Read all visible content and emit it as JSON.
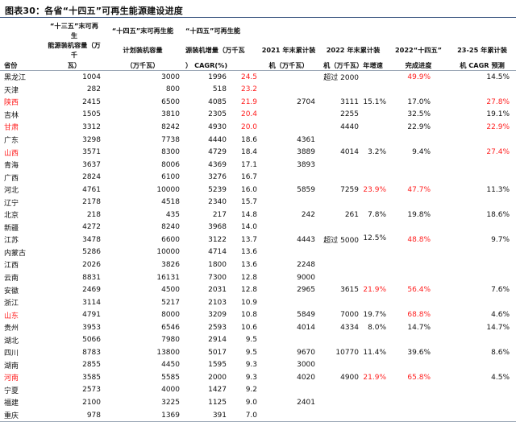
{
  "title": "图表30：各省“十四五”可再生能源建设进度",
  "headers": [
    [
      "“十三五”末可再生",
      "“十四五”末可再生能",
      "“十四五”可再生能",
      "",
      "",
      "",
      "",
      ""
    ],
    [
      "能源装机容量（万千",
      "计划装机容量",
      "源装机增量（万千瓦",
      "2021 年末累计装",
      "2022 年末累计装",
      "2022“十四五”",
      "23-25 年累计装",
      ""
    ],
    [
      "省份",
      "瓦）",
      "（万千瓦）",
      "） CAGR(%)",
      "机（万千瓦）",
      "机（万千瓦）年增速",
      "完成进度",
      "机 CAGR 预测"
    ]
  ],
  "header_cols": {
    "c1": [
      "“十三五”末可再生",
      "能源装机容量（万千",
      "瓦）"
    ],
    "c2": [
      "“十四五”末可再生能",
      "计划装机容量",
      "（万千瓦）"
    ],
    "c3": [
      "“十四五”可再生能",
      "源装机增量（万千瓦",
      "）"
    ],
    "c4": [
      "CAGR(%)"
    ],
    "c5": [
      "2021 年末累计装",
      "机（万千瓦）"
    ],
    "c6": [
      "2022 年末累计装",
      "机（万千瓦）",
      "年增速"
    ],
    "c7": [
      "2022“十四五”",
      "完成进度"
    ],
    "c8": [
      "23-25 年累计装",
      "机 CAGR 预测"
    ]
  },
  "colors": {
    "accent_red": "#ff1f1f",
    "rule": "#1a3a6b"
  },
  "rows": [
    {
      "province": "黑龙江",
      "end13": "1004",
      "plan14": "3000",
      "inc14": "1996",
      "cagr": "24.5",
      "cagr_red": true,
      "cum2021": "",
      "cum2022": "超过 2000",
      "growth": "",
      "progress": "49.9%",
      "progress_red": true,
      "cagr_pred": "14.5%",
      "pred_red": false,
      "prov_red": false
    },
    {
      "province": "天津",
      "end13": "282",
      "plan14": "800",
      "inc14": "518",
      "cagr": "23.2",
      "cagr_red": true,
      "cum2021": "",
      "cum2022": "",
      "growth": "",
      "progress": "",
      "progress_red": false,
      "cagr_pred": "",
      "pred_red": false,
      "prov_red": false
    },
    {
      "province": "陕西",
      "end13": "2415",
      "plan14": "6500",
      "inc14": "4085",
      "cagr": "21.9",
      "cagr_red": true,
      "cum2021": "2704",
      "cum2022": "3111",
      "growth": "15.1%",
      "progress": "17.0%",
      "progress_red": false,
      "cagr_pred": "27.8%",
      "pred_red": true,
      "prov_red": true
    },
    {
      "province": "吉林",
      "end13": "1505",
      "plan14": "3810",
      "inc14": "2305",
      "cagr": "20.4",
      "cagr_red": true,
      "cum2021": "",
      "cum2022": "2255",
      "growth": "",
      "progress": "32.5%",
      "progress_red": false,
      "cagr_pred": "19.1%",
      "pred_red": false,
      "prov_red": false
    },
    {
      "province": "甘肃",
      "end13": "3312",
      "plan14": "8242",
      "inc14": "4930",
      "cagr": "20.0",
      "cagr_red": true,
      "cum2021": "",
      "cum2022": "4440",
      "growth": "",
      "progress": "22.9%",
      "progress_red": false,
      "cagr_pred": "22.9%",
      "pred_red": true,
      "prov_red": true
    },
    {
      "province": "广东",
      "end13": "3298",
      "plan14": "7738",
      "inc14": "4440",
      "cagr": "18.6",
      "cagr_red": false,
      "cum2021": "4361",
      "cum2022": "",
      "growth": "",
      "progress": "",
      "progress_red": false,
      "cagr_pred": "",
      "pred_red": false,
      "prov_red": false
    },
    {
      "province": "山西",
      "end13": "3571",
      "plan14": "8300",
      "inc14": "4729",
      "cagr": "18.4",
      "cagr_red": false,
      "cum2021": "3889",
      "cum2022": "4014",
      "growth": "3.2%",
      "progress": "9.4%",
      "progress_red": false,
      "cagr_pred": "27.4%",
      "pred_red": true,
      "prov_red": true
    },
    {
      "province": "青海",
      "end13": "3637",
      "plan14": "8006",
      "inc14": "4369",
      "cagr": "17.1",
      "cagr_red": false,
      "cum2021": "3893",
      "cum2022": "",
      "growth": "",
      "progress": "",
      "progress_red": false,
      "cagr_pred": "",
      "pred_red": false,
      "prov_red": false
    },
    {
      "province": "广西",
      "end13": "2824",
      "plan14": "6100",
      "inc14": "3276",
      "cagr": "16.7",
      "cagr_red": false,
      "cum2021": "",
      "cum2022": "",
      "growth": "",
      "progress": "",
      "progress_red": false,
      "cagr_pred": "",
      "pred_red": false,
      "prov_red": false
    },
    {
      "province": "河北",
      "end13": "4761",
      "plan14": "10000",
      "inc14": "5239",
      "cagr": "16.0",
      "cagr_red": false,
      "cum2021": "5859",
      "cum2022": "7259",
      "growth": "23.9%",
      "growth_red": true,
      "progress": "47.7%",
      "progress_red": true,
      "cagr_pred": "11.3%",
      "pred_red": false,
      "prov_red": false
    },
    {
      "province": "辽宁",
      "end13": "2178",
      "plan14": "4518",
      "inc14": "2340",
      "cagr": "15.7",
      "cagr_red": false,
      "cum2021": "",
      "cum2022": "",
      "growth": "",
      "progress": "",
      "progress_red": false,
      "cagr_pred": "",
      "pred_red": false,
      "prov_red": false
    },
    {
      "province": "北京",
      "end13": "218",
      "plan14": "435",
      "inc14": "217",
      "cagr": "14.8",
      "cagr_red": false,
      "cum2021": "242",
      "cum2022": "261",
      "growth": "7.8%",
      "progress": "19.8%",
      "progress_red": false,
      "cagr_pred": "18.6%",
      "pred_red": false,
      "prov_red": false
    },
    {
      "province": "新疆",
      "end13": "4272",
      "plan14": "8240",
      "inc14": "3968",
      "cagr": "14.0",
      "cagr_red": false,
      "cum2021": "",
      "cum2022": "",
      "growth": "",
      "progress": "",
      "progress_red": false,
      "cagr_pred": "",
      "pred_red": false,
      "prov_red": false
    },
    {
      "province": "江苏",
      "end13": "3478",
      "plan14": "6600",
      "inc14": "3122",
      "cagr": "13.7",
      "cagr_red": false,
      "cum2021": "4443",
      "cum2022": "超过 5000",
      "growth": "12.5%",
      "progress": "48.8%",
      "progress_red": true,
      "cagr_pred": "9.7%",
      "pred_red": false,
      "prov_red": false
    },
    {
      "province": "内蒙古",
      "end13": "5286",
      "plan14": "10000",
      "inc14": "4714",
      "cagr": "13.6",
      "cagr_red": false,
      "cum2021": "",
      "cum2022": "",
      "growth": "",
      "progress": "",
      "progress_red": false,
      "cagr_pred": "",
      "pred_red": false,
      "prov_red": false
    },
    {
      "province": "江西",
      "end13": "2026",
      "plan14": "3826",
      "inc14": "1800",
      "cagr": "13.6",
      "cagr_red": false,
      "cum2021": "2248",
      "cum2022": "",
      "growth": "",
      "progress": "",
      "progress_red": false,
      "cagr_pred": "",
      "pred_red": false,
      "prov_red": false
    },
    {
      "province": "云南",
      "end13": "8831",
      "plan14": "16131",
      "inc14": "7300",
      "cagr": "12.8",
      "cagr_red": false,
      "cum2021": "9000",
      "cum2022": "",
      "growth": "",
      "progress": "",
      "progress_red": false,
      "cagr_pred": "",
      "pred_red": false,
      "prov_red": false
    },
    {
      "province": "安徽",
      "end13": "2469",
      "plan14": "4500",
      "inc14": "2031",
      "cagr": "12.8",
      "cagr_red": false,
      "cum2021": "2965",
      "cum2022": "3615",
      "growth": "21.9%",
      "growth_red": true,
      "progress": "56.4%",
      "progress_red": true,
      "cagr_pred": "7.6%",
      "pred_red": false,
      "prov_red": false
    },
    {
      "province": "浙江",
      "end13": "3114",
      "plan14": "5217",
      "inc14": "2103",
      "cagr": "10.9",
      "cagr_red": false,
      "cum2021": "",
      "cum2022": "",
      "growth": "",
      "progress": "",
      "progress_red": false,
      "cagr_pred": "",
      "pred_red": false,
      "prov_red": false
    },
    {
      "province": "山东",
      "end13": "4791",
      "plan14": "8000",
      "inc14": "3209",
      "cagr": "10.8",
      "cagr_red": false,
      "cum2021": "5849",
      "cum2022": "7000",
      "growth": "19.7%",
      "progress": "68.8%",
      "progress_red": true,
      "cagr_pred": "4.6%",
      "pred_red": false,
      "prov_red": true
    },
    {
      "province": "贵州",
      "end13": "3953",
      "plan14": "6546",
      "inc14": "2593",
      "cagr": "10.6",
      "cagr_red": false,
      "cum2021": "4014",
      "cum2022": "4334",
      "growth": "8.0%",
      "progress": "14.7%",
      "progress_red": false,
      "cagr_pred": "14.7%",
      "pred_red": false,
      "prov_red": false
    },
    {
      "province": "湖北",
      "end13": "5066",
      "plan14": "7980",
      "inc14": "2914",
      "cagr": "9.5",
      "cagr_red": false,
      "cum2021": "",
      "cum2022": "",
      "growth": "",
      "progress": "",
      "progress_red": false,
      "cagr_pred": "",
      "pred_red": false,
      "prov_red": false
    },
    {
      "province": "四川",
      "end13": "8783",
      "plan14": "13800",
      "inc14": "5017",
      "cagr": "9.5",
      "cagr_red": false,
      "cum2021": "9670",
      "cum2022": "10770",
      "growth": "11.4%",
      "progress": "39.6%",
      "progress_red": false,
      "cagr_pred": "8.6%",
      "pred_red": false,
      "prov_red": false
    },
    {
      "province": "湖南",
      "end13": "2855",
      "plan14": "4450",
      "inc14": "1595",
      "cagr": "9.3",
      "cagr_red": false,
      "cum2021": "3000",
      "cum2022": "",
      "growth": "",
      "progress": "",
      "progress_red": false,
      "cagr_pred": "",
      "pred_red": false,
      "prov_red": false
    },
    {
      "province": "河南",
      "end13": "3585",
      "plan14": "5585",
      "inc14": "2000",
      "cagr": "9.3",
      "cagr_red": false,
      "cum2021": "4020",
      "cum2022": "4900",
      "growth": "21.9%",
      "growth_red": true,
      "progress": "65.8%",
      "progress_red": true,
      "cagr_pred": "4.5%",
      "pred_red": false,
      "prov_red": true
    },
    {
      "province": "宁夏",
      "end13": "2573",
      "plan14": "4000",
      "inc14": "1427",
      "cagr": "9.2",
      "cagr_red": false,
      "cum2021": "",
      "cum2022": "",
      "growth": "",
      "progress": "",
      "progress_red": false,
      "cagr_pred": "",
      "pred_red": false,
      "prov_red": false
    },
    {
      "province": "福建",
      "end13": "2100",
      "plan14": "3225",
      "inc14": "1125",
      "cagr": "9.0",
      "cagr_red": false,
      "cum2021": "2401",
      "cum2022": "",
      "growth": "",
      "progress": "",
      "progress_red": false,
      "cagr_pred": "",
      "pred_red": false,
      "prov_red": false
    },
    {
      "province": "重庆",
      "end13": "978",
      "plan14": "1369",
      "inc14": "391",
      "cagr": "7.0",
      "cagr_red": false,
      "cum2021": "",
      "cum2022": "",
      "growth": "",
      "progress": "",
      "progress_red": false,
      "cagr_pred": "",
      "pred_red": false,
      "prov_red": false
    }
  ]
}
